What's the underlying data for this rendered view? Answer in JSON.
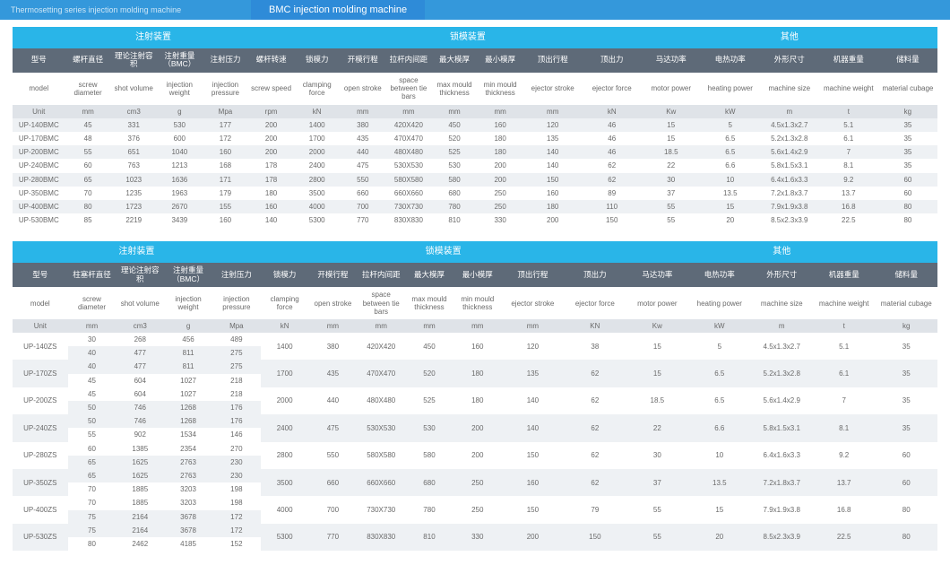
{
  "topbar": {
    "series": "Thermosetting series injection molding machine",
    "title": "BMC injection molding machine"
  },
  "groups": {
    "g1": "注射装置",
    "g2": "锁模装置",
    "g3": "其他"
  },
  "cn1": {
    "model": "型号",
    "screwDia": "螺杆直径",
    "shotVol": "理论注射容积",
    "injWeight": "注射重量（BMC）",
    "injPress": "注射压力",
    "screwSpeed": "螺杆转速",
    "clamp": "锁模力",
    "openStroke": "开模行程",
    "tieBar": "拉杆内间距",
    "maxMould": "最大模厚",
    "minMould": "最小模厚",
    "ejStroke": "顶出行程",
    "ejForce": "顶出力",
    "motor": "马达功率",
    "heat": "电热功率",
    "machSize": "外形尺寸",
    "machWeight": "机器重量",
    "cubage": "储料量"
  },
  "en1": {
    "model": "model",
    "screwDia": "screw diameter",
    "shotVol": "shot volume",
    "injWeight": "injection weight",
    "injPress": "injection pressure",
    "screwSpeed": "screw speed",
    "clamp": "clamping force",
    "openStroke": "open stroke",
    "tieBar": "space between tie bars",
    "maxMould": "max mould thickness",
    "minMould": "min mould thickness",
    "ejStroke": "ejector stroke",
    "ejForce": "ejector force",
    "motor": "motor power",
    "heat": "heating power",
    "machSize": "machine size",
    "machWeight": "machine weight",
    "cubage": "material cubage"
  },
  "units": {
    "unit": "Unit",
    "mm": "mm",
    "cm3": "cm3",
    "g": "g",
    "mpa": "Mpa",
    "rpm": "rpm",
    "kn": "kN",
    "KN": "KN",
    "kw": "Kw",
    "kW": "kW",
    "m": "m",
    "t": "t",
    "kg": "kg"
  },
  "cn2": {
    "model": "型号",
    "screwDia": "柱塞杆直径",
    "shotVol": "理论注射容积",
    "injWeight": "注射重量（BMC）",
    "injPress": "注射压力",
    "clamp": "锁模力",
    "openStroke": "开模行程",
    "tieBar": "拉杆内间距",
    "maxMould": "最大模厚",
    "minMould": "最小模厚",
    "ejStroke": "顶出行程",
    "ejForce": "顶出力",
    "motor": "马达功率",
    "heat": "电热功率",
    "machSize": "外形尺寸",
    "machWeight": "机器重量",
    "cubage": "储料量"
  },
  "bmc": [
    {
      "model": "UP-140BMC",
      "sd": "45",
      "sv": "331",
      "iw": "530",
      "ip": "177",
      "ss": "200",
      "cf": "1400",
      "os": "380",
      "tb": "420X420",
      "max": "450",
      "min": "160",
      "es": "120",
      "ef": "46",
      "mp": "15",
      "hp": "5",
      "ms": "4.5x1.3x2.7",
      "mw": "5.1",
      "cb": "35"
    },
    {
      "model": "UP-170BMC",
      "sd": "48",
      "sv": "376",
      "iw": "600",
      "ip": "172",
      "ss": "200",
      "cf": "1700",
      "os": "435",
      "tb": "470X470",
      "max": "520",
      "min": "180",
      "es": "135",
      "ef": "46",
      "mp": "15",
      "hp": "6.5",
      "ms": "5.2x1.3x2.8",
      "mw": "6.1",
      "cb": "35"
    },
    {
      "model": "UP-200BMC",
      "sd": "55",
      "sv": "651",
      "iw": "1040",
      "ip": "160",
      "ss": "200",
      "cf": "2000",
      "os": "440",
      "tb": "480X480",
      "max": "525",
      "min": "180",
      "es": "140",
      "ef": "46",
      "mp": "18.5",
      "hp": "6.5",
      "ms": "5.6x1.4x2.9",
      "mw": "7",
      "cb": "35"
    },
    {
      "model": "UP-240BMC",
      "sd": "60",
      "sv": "763",
      "iw": "1213",
      "ip": "168",
      "ss": "178",
      "cf": "2400",
      "os": "475",
      "tb": "530X530",
      "max": "530",
      "min": "200",
      "es": "140",
      "ef": "62",
      "mp": "22",
      "hp": "6.6",
      "ms": "5.8x1.5x3.1",
      "mw": "8.1",
      "cb": "35"
    },
    {
      "model": "UP-280BMC",
      "sd": "65",
      "sv": "1023",
      "iw": "1636",
      "ip": "171",
      "ss": "178",
      "cf": "2800",
      "os": "550",
      "tb": "580X580",
      "max": "580",
      "min": "200",
      "es": "150",
      "ef": "62",
      "mp": "30",
      "hp": "10",
      "ms": "6.4x1.6x3.3",
      "mw": "9.2",
      "cb": "60"
    },
    {
      "model": "UP-350BMC",
      "sd": "70",
      "sv": "1235",
      "iw": "1963",
      "ip": "179",
      "ss": "180",
      "cf": "3500",
      "os": "660",
      "tb": "660X660",
      "max": "680",
      "min": "250",
      "es": "160",
      "ef": "89",
      "mp": "37",
      "hp": "13.5",
      "ms": "7.2x1.8x3.7",
      "mw": "13.7",
      "cb": "60"
    },
    {
      "model": "UP-400BMC",
      "sd": "80",
      "sv": "1723",
      "iw": "2670",
      "ip": "155",
      "ss": "160",
      "cf": "4000",
      "os": "700",
      "tb": "730X730",
      "max": "780",
      "min": "250",
      "es": "180",
      "ef": "110",
      "mp": "55",
      "hp": "15",
      "ms": "7.9x1.9x3.8",
      "mw": "16.8",
      "cb": "80"
    },
    {
      "model": "UP-530BMC",
      "sd": "85",
      "sv": "2219",
      "iw": "3439",
      "ip": "160",
      "ss": "140",
      "cf": "5300",
      "os": "770",
      "tb": "830X830",
      "max": "810",
      "min": "330",
      "es": "200",
      "ef": "150",
      "mp": "55",
      "hp": "20",
      "ms": "8.5x2.3x3.9",
      "mw": "22.5",
      "cb": "80"
    }
  ],
  "zs": [
    {
      "model": "UP-140ZS",
      "v": [
        [
          "30",
          "268",
          "456",
          "489"
        ],
        [
          "40",
          "477",
          "811",
          "275"
        ]
      ],
      "cf": "1400",
      "os": "380",
      "tb": "420X420",
      "max": "450",
      "min": "160",
      "es": "120",
      "ef": "38",
      "mp": "15",
      "hp": "5",
      "ms": "4.5x1.3x2.7",
      "mw": "5.1",
      "cb": "35"
    },
    {
      "model": "UP-170ZS",
      "v": [
        [
          "40",
          "477",
          "811",
          "275"
        ],
        [
          "45",
          "604",
          "1027",
          "218"
        ]
      ],
      "cf": "1700",
      "os": "435",
      "tb": "470X470",
      "max": "520",
      "min": "180",
      "es": "135",
      "ef": "62",
      "mp": "15",
      "hp": "6.5",
      "ms": "5.2x1.3x2.8",
      "mw": "6.1",
      "cb": "35"
    },
    {
      "model": "UP-200ZS",
      "v": [
        [
          "45",
          "604",
          "1027",
          "218"
        ],
        [
          "50",
          "746",
          "1268",
          "176"
        ]
      ],
      "cf": "2000",
      "os": "440",
      "tb": "480X480",
      "max": "525",
      "min": "180",
      "es": "140",
      "ef": "62",
      "mp": "18.5",
      "hp": "6.5",
      "ms": "5.6x1.4x2.9",
      "mw": "7",
      "cb": "35"
    },
    {
      "model": "UP-240ZS",
      "v": [
        [
          "50",
          "746",
          "1268",
          "176"
        ],
        [
          "55",
          "902",
          "1534",
          "146"
        ]
      ],
      "cf": "2400",
      "os": "475",
      "tb": "530X530",
      "max": "530",
      "min": "200",
      "es": "140",
      "ef": "62",
      "mp": "22",
      "hp": "6.6",
      "ms": "5.8x1.5x3.1",
      "mw": "8.1",
      "cb": "35"
    },
    {
      "model": "UP-280ZS",
      "v": [
        [
          "60",
          "1385",
          "2354",
          "270"
        ],
        [
          "65",
          "1625",
          "2763",
          "230"
        ]
      ],
      "cf": "2800",
      "os": "550",
      "tb": "580X580",
      "max": "580",
      "min": "200",
      "es": "150",
      "ef": "62",
      "mp": "30",
      "hp": "10",
      "ms": "6.4x1.6x3.3",
      "mw": "9.2",
      "cb": "60"
    },
    {
      "model": "UP-350ZS",
      "v": [
        [
          "65",
          "1625",
          "2763",
          "230"
        ],
        [
          "70",
          "1885",
          "3203",
          "198"
        ]
      ],
      "cf": "3500",
      "os": "660",
      "tb": "660X660",
      "max": "680",
      "min": "250",
      "es": "160",
      "ef": "62",
      "mp": "37",
      "hp": "13.5",
      "ms": "7.2x1.8x3.7",
      "mw": "13.7",
      "cb": "60"
    },
    {
      "model": "UP-400ZS",
      "v": [
        [
          "70",
          "1885",
          "3203",
          "198"
        ],
        [
          "75",
          "2164",
          "3678",
          "172"
        ]
      ],
      "cf": "4000",
      "os": "700",
      "tb": "730X730",
      "max": "780",
      "min": "250",
      "es": "150",
      "ef": "79",
      "mp": "55",
      "hp": "15",
      "ms": "7.9x1.9x3.8",
      "mw": "16.8",
      "cb": "80"
    },
    {
      "model": "UP-530ZS",
      "v": [
        [
          "75",
          "2164",
          "3678",
          "172"
        ],
        [
          "80",
          "2462",
          "4185",
          "152"
        ]
      ],
      "cf": "5300",
      "os": "770",
      "tb": "830X830",
      "max": "810",
      "min": "330",
      "es": "200",
      "ef": "150",
      "mp": "55",
      "hp": "20",
      "ms": "8.5x2.3x3.9",
      "mw": "22.5",
      "cb": "80"
    }
  ]
}
